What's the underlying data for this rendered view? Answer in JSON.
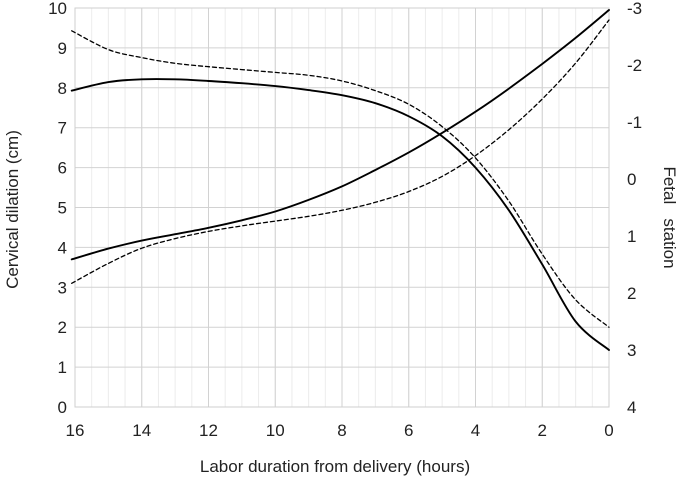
{
  "chart_data": {
    "type": "line",
    "xlabel": "Labor duration from delivery (hours)",
    "ylabel": "Cervical dilation (cm)",
    "y2label": "Fetal   station",
    "xlim": [
      16,
      0
    ],
    "x_reversed": true,
    "ylim": [
      0,
      10
    ],
    "y2lim": [
      4,
      -3
    ],
    "y2_reversed": true,
    "xticks": [
      16,
      14,
      12,
      10,
      8,
      6,
      4,
      2,
      0
    ],
    "yticks": [
      0,
      1,
      2,
      3,
      4,
      5,
      6,
      7,
      8,
      9,
      10
    ],
    "y2ticks": [
      -3,
      -2,
      -1,
      0,
      1,
      2,
      3,
      4
    ],
    "grid": true,
    "series": [
      {
        "axis": "left",
        "style": "solid",
        "color": "#000000",
        "x": [
          16.1,
          15,
          14,
          13,
          12,
          11,
          10,
          9,
          8,
          7,
          6,
          5,
          4,
          3,
          2,
          1,
          0
        ],
        "y": [
          3.7,
          3.97,
          4.17,
          4.33,
          4.49,
          4.68,
          4.9,
          5.19,
          5.53,
          5.94,
          6.38,
          6.87,
          7.4,
          7.98,
          8.6,
          9.25,
          9.95
        ]
      },
      {
        "axis": "left",
        "style": "dashed",
        "color": "#000000",
        "x": [
          16.1,
          15,
          14,
          13,
          12,
          11,
          10,
          9,
          8,
          7,
          6,
          5,
          4,
          3,
          2,
          1,
          0
        ],
        "y": [
          3.1,
          3.6,
          3.98,
          4.22,
          4.4,
          4.54,
          4.66,
          4.78,
          4.93,
          5.13,
          5.4,
          5.78,
          6.3,
          6.95,
          7.72,
          8.62,
          9.7
        ]
      },
      {
        "axis": "right",
        "style": "solid",
        "color": "#000000",
        "x": [
          16.1,
          15,
          14,
          13,
          12,
          11,
          10,
          9,
          8,
          7,
          6,
          5,
          4,
          3,
          2,
          1,
          0
        ],
        "y": [
          -1.55,
          -1.7,
          -1.75,
          -1.75,
          -1.72,
          -1.68,
          -1.63,
          -1.56,
          -1.47,
          -1.33,
          -1.1,
          -0.75,
          -0.2,
          0.55,
          1.5,
          2.5,
          3.0
        ]
      },
      {
        "axis": "right",
        "style": "dashed",
        "color": "#000000",
        "x": [
          16.1,
          15,
          14,
          13,
          12,
          11,
          10,
          9,
          8,
          7,
          6,
          5,
          4,
          3,
          2,
          1,
          0
        ],
        "y": [
          -2.6,
          -2.27,
          -2.13,
          -2.03,
          -1.97,
          -1.92,
          -1.87,
          -1.82,
          -1.72,
          -1.55,
          -1.31,
          -0.92,
          -0.37,
          0.39,
          1.32,
          2.12,
          2.6
        ]
      }
    ]
  }
}
